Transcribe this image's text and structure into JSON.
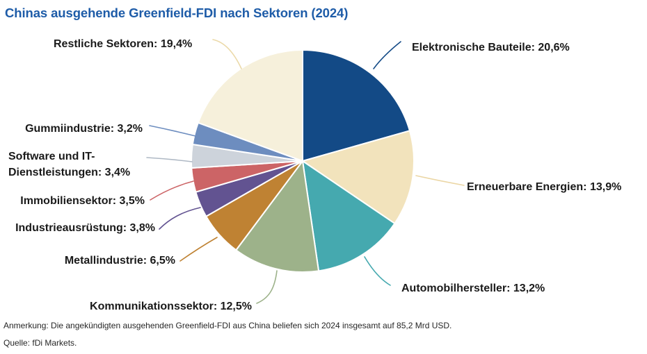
{
  "title": "Chinas ausgehende Greenfield-FDI nach Sektoren (2024)",
  "footer": {
    "note": "Anmerkung: Die angekündigten ausgehenden Greenfield-FDI aus China beliefen sich 2024 insgesamt auf 85,2 Mrd USD.",
    "source": "Quelle: fDi Markets."
  },
  "colors": {
    "title_text": "#1E5CA8",
    "label_text": "#1A1A1A",
    "note_text": "#262626",
    "slice_divider": "#FFFFFF"
  },
  "chart_data": {
    "type": "pie",
    "title": "Chinas ausgehende Greenfield-FDI nach Sektoren (2024)",
    "units": "%",
    "total_note_value": "85,2 Mrd USD",
    "start_angle_deg_from_12_oclock": 0,
    "direction": "clockwise",
    "legend_position": "outside-labels-with-leader-lines",
    "slices": [
      {
        "id": "elektronische",
        "name": "Elektronische Bauteile",
        "value": 20.6,
        "label": "Elektronische Bauteile: 20,6%",
        "color": "#134A86",
        "line_color": "#134A86"
      },
      {
        "id": "erneuerbare",
        "name": "Erneuerbare Energien",
        "value": 13.9,
        "label": "Erneuerbare Energien: 13,9%",
        "color": "#F2E3BC",
        "line_color": "#EBD6A4"
      },
      {
        "id": "automobil",
        "name": "Automobilhersteller",
        "value": 13.2,
        "label": "Automobilhersteller: 13,2%",
        "color": "#45A9AF",
        "line_color": "#45A9AF"
      },
      {
        "id": "kommunikation",
        "name": "Kommunikationssektor",
        "value": 12.5,
        "label": "Kommunikationssektor: 12,5%",
        "color": "#9DB28A",
        "line_color": "#9DB28A"
      },
      {
        "id": "metall",
        "name": "Metallindustrie",
        "value": 6.5,
        "label": "Metallindustrie: 6,5%",
        "color": "#BF8233",
        "line_color": "#BF8233"
      },
      {
        "id": "industrieausruestung",
        "name": "Industrieausrüstung",
        "value": 3.8,
        "label": "Industrieausrüstung: 3,8%",
        "color": "#625391",
        "line_color": "#625391"
      },
      {
        "id": "immobilien",
        "name": "Immobiliensektor",
        "value": 3.5,
        "label": "Immobiliensektor: 3,5%",
        "color": "#CC6466",
        "line_color": "#CC6466"
      },
      {
        "id": "software",
        "name": "Software und IT-Dienstleistungen",
        "value": 3.4,
        "label": "Software und IT-Dienstleistungen: 3,4%",
        "color": "#CDD3DB",
        "line_color": "#AEB8C4"
      },
      {
        "id": "gummi",
        "name": "Gummiindustrie",
        "value": 3.2,
        "label": "Gummiindustrie: 3,2%",
        "color": "#6D8DBF",
        "line_color": "#6D8DBF"
      },
      {
        "id": "restliche",
        "name": "Restliche Sektoren",
        "value": 19.4,
        "label": "Restliche Sektoren: 19,4%",
        "color": "#F6F0DB",
        "line_color": "#EBD9A8"
      }
    ]
  }
}
